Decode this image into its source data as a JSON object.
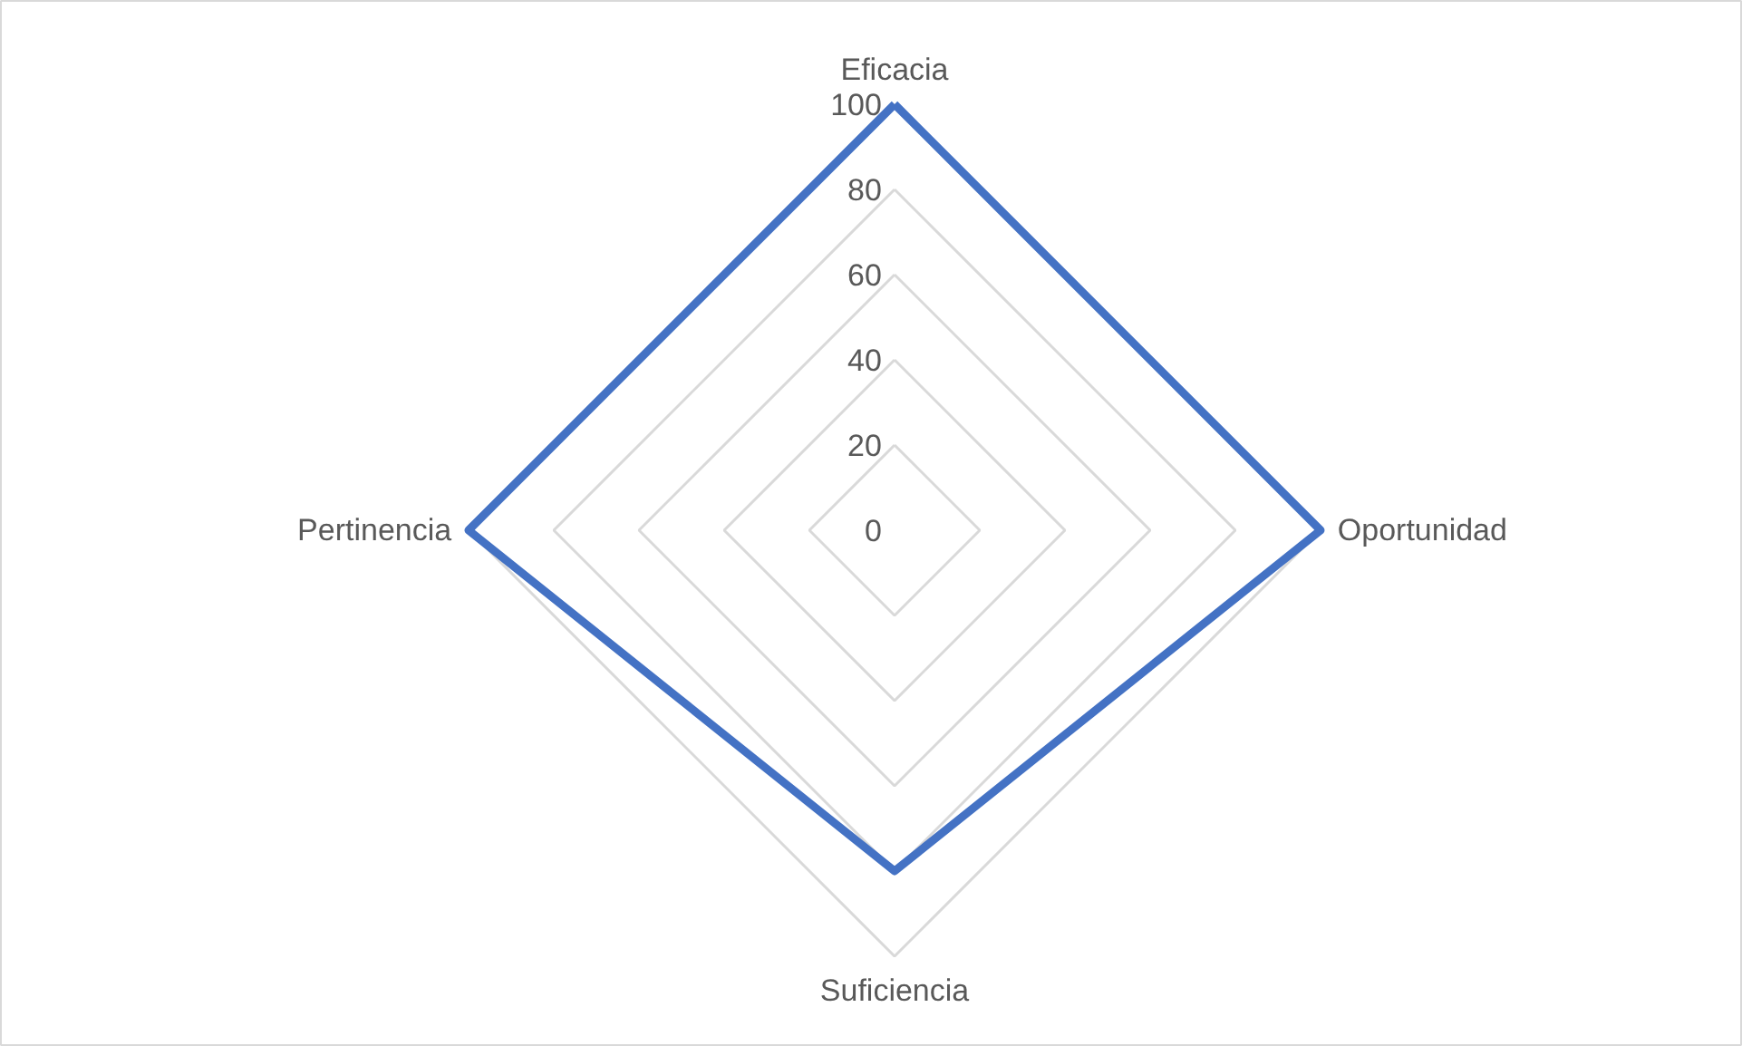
{
  "chart_data": {
    "type": "radar",
    "categories": [
      "Eficacia",
      "Oportunidad",
      "Suficiencia",
      "Pertinencia"
    ],
    "series": [
      {
        "color": "#4472c4",
        "values": [
          100,
          100,
          80,
          100
        ]
      }
    ],
    "ylim": [
      0,
      100
    ],
    "yticks": [
      0,
      20,
      40,
      60,
      80,
      100
    ],
    "grid": true
  }
}
